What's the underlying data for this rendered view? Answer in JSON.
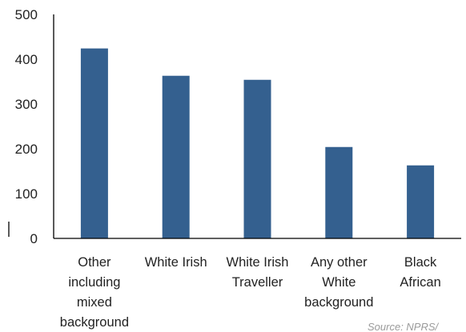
{
  "chart_data": {
    "type": "bar",
    "categories": [
      [
        "Other",
        "including",
        "mixed",
        "background"
      ],
      [
        "White Irish"
      ],
      [
        "White Irish",
        "Traveller"
      ],
      [
        "Any other",
        "White",
        "background"
      ],
      [
        "Black",
        "African"
      ]
    ],
    "values": [
      424,
      363,
      354,
      204,
      163
    ],
    "y_ticks": [
      "0",
      "100",
      "200",
      "300",
      "400",
      "500"
    ],
    "ylim": [
      0,
      500
    ],
    "grid": false,
    "bar_color": "#34608f",
    "title": "",
    "xlabel": "",
    "ylabel": "",
    "source": "Source: NPRS/"
  }
}
